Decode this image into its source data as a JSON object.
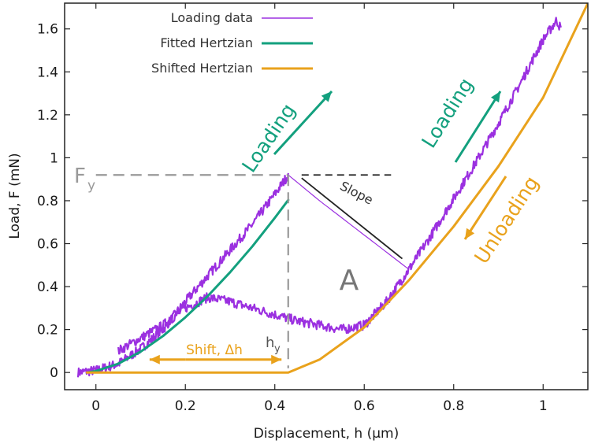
{
  "colors": {
    "loading_data": "#9b30e0",
    "fitted_hertzian": "#13a07e",
    "shifted_hertzian": "#e9a21c",
    "dashed": "#999999",
    "slope_line": "#222222",
    "axis": "#222222",
    "region_label": "#777777"
  },
  "chart_data": {
    "type": "line",
    "xlabel": "Displacement, h (μm)",
    "ylabel": "Load, F (mN)",
    "xlim": [
      -0.07,
      1.1
    ],
    "ylim": [
      -0.08,
      1.72
    ],
    "xticks": [
      0,
      0.2,
      0.4,
      0.6,
      0.8,
      1
    ],
    "xtick_labels": [
      "0",
      "0.2",
      "0.4",
      "0.6",
      "0.8",
      "1"
    ],
    "yticks": [
      0,
      0.2,
      0.4,
      0.6,
      0.8,
      1,
      1.2,
      1.4,
      1.6
    ],
    "ytick_labels": [
      "0",
      "0.2",
      "0.4",
      "0.6",
      "0.8",
      "1",
      "1.2",
      "1.4",
      "1.6"
    ],
    "grid": false,
    "legend_position": "top-left",
    "series": [
      {
        "name": "Loading data",
        "color": "#9b30e0",
        "segments": [
          {
            "x": [
              -0.04,
              0.0,
              0.05,
              0.1,
              0.15,
              0.2,
              0.25,
              0.3,
              0.35,
              0.4,
              0.43
            ],
            "y": [
              0.0,
              0.01,
              0.04,
              0.11,
              0.2,
              0.33,
              0.45,
              0.57,
              0.69,
              0.83,
              0.92
            ]
          },
          {
            "x": [
              0.43,
              0.5,
              0.6,
              0.7
            ],
            "y": [
              0.92,
              0.8,
              0.64,
              0.48
            ]
          },
          {
            "x": [
              0.05,
              0.1,
              0.15,
              0.2,
              0.25,
              0.3,
              0.35,
              0.4,
              0.45,
              0.5,
              0.55,
              0.6
            ],
            "y": [
              0.1,
              0.16,
              0.22,
              0.3,
              0.35,
              0.33,
              0.3,
              0.27,
              0.24,
              0.22,
              0.2,
              0.22
            ]
          },
          {
            "x": [
              0.6,
              0.65,
              0.7,
              0.75,
              0.8,
              0.85,
              0.9,
              0.95,
              1.0,
              1.03,
              1.04
            ],
            "y": [
              0.22,
              0.33,
              0.48,
              0.64,
              0.81,
              0.98,
              1.16,
              1.35,
              1.55,
              1.64,
              1.6
            ]
          }
        ]
      },
      {
        "name": "Fitted Hertzian",
        "color": "#13a07e",
        "x": [
          -0.02,
          0.0,
          0.05,
          0.1,
          0.15,
          0.2,
          0.25,
          0.3,
          0.35,
          0.4,
          0.43
        ],
        "y": [
          0.0,
          0.007,
          0.041,
          0.097,
          0.17,
          0.257,
          0.356,
          0.467,
          0.588,
          0.72,
          0.803
        ]
      },
      {
        "name": "Shifted Hertzian",
        "color": "#e9a21c",
        "x": [
          -0.02,
          0.1,
          0.2,
          0.3,
          0.43,
          0.5,
          0.6,
          0.7,
          0.8,
          0.9,
          1.0,
          1.1
        ],
        "y": [
          0.0,
          0.0,
          0.0,
          0.0,
          0.0,
          0.06,
          0.21,
          0.43,
          0.68,
          0.96,
          1.28,
          1.72
        ]
      }
    ],
    "annotations": {
      "fy_label": "F",
      "fy_sub": "y",
      "hy_label": "h",
      "hy_sub": "y",
      "slope_label": "Slope",
      "area_label": "A",
      "shift_label": "Shift, Δh",
      "loading_label_left": "Loading",
      "loading_label_right": "Loading",
      "unloading_label": "Unloading"
    }
  }
}
